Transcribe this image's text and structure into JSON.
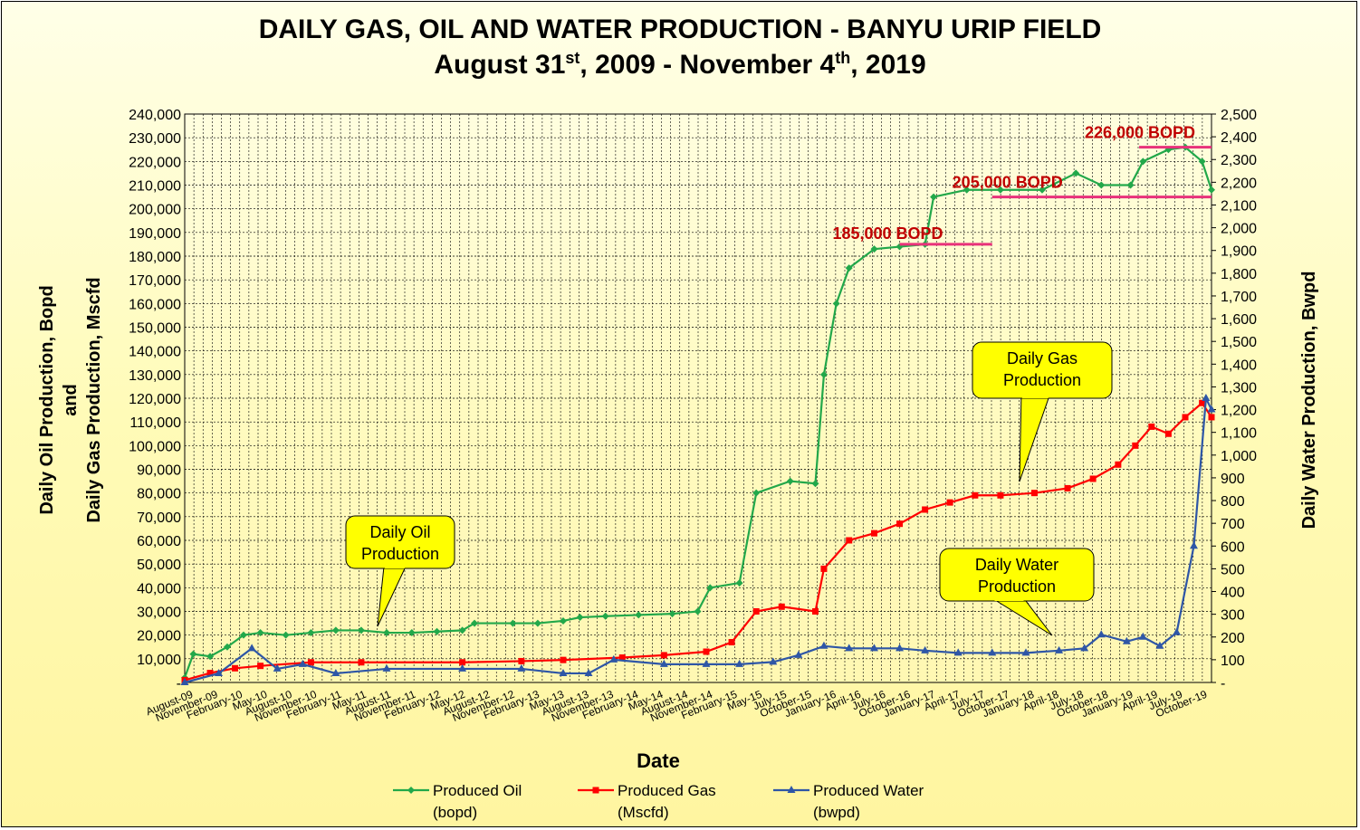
{
  "chart_data": {
    "type": "line",
    "title": "DAILY  GAS, OIL AND WATER PRODUCTION - BANYU URIP FIELD",
    "subtitle": {
      "prefix": "August 31",
      "sup1": "st",
      "mid": ", 2009 - November 4",
      "sup2": "th",
      "suffix": ", 2019"
    },
    "xlabel": "Date",
    "ylabel_left": [
      "Daily Oil Production, Bopd",
      "and",
      "Daily Gas Production, Mscfd"
    ],
    "ylabel_right": "Daily Water  Production, Bwpd",
    "x_range": [
      "2009-08-31",
      "2019-11-04"
    ],
    "y_left_range": [
      0,
      240000
    ],
    "y_right_range": [
      0,
      2500
    ],
    "grid": true,
    "legend_placement": "bottom",
    "x_ticks": [
      "August-09",
      "November-09",
      "February-10",
      "May-10",
      "August-10",
      "November-10",
      "February-11",
      "May-11",
      "August-11",
      "November-11",
      "February-12",
      "May-12",
      "August-12",
      "November-12",
      "February-13",
      "May-13",
      "August-13",
      "November-13",
      "February-14",
      "May-14",
      "August-14",
      "November-14",
      "February-15",
      "May-15",
      "July-15",
      "October-15",
      "January-16",
      "April-16",
      "July-16",
      "October-16",
      "January-17",
      "April-17",
      "July-17",
      "October-17",
      "January-18",
      "April-18",
      "July-18",
      "October-18",
      "January-19",
      "April-19",
      "July-19",
      "October-19"
    ],
    "y_left_ticks": [
      "-",
      "10,000",
      "20,000",
      "30,000",
      "40,000",
      "50,000",
      "60,000",
      "70,000",
      "80,000",
      "90,000",
      "100,000",
      "110,000",
      "120,000",
      "130,000",
      "140,000",
      "150,000",
      "160,000",
      "170,000",
      "180,000",
      "190,000",
      "200,000",
      "210,000",
      "220,000",
      "230,000",
      "240,000"
    ],
    "y_right_ticks": [
      "-",
      "100",
      "200",
      "300",
      "400",
      "500",
      "600",
      "700",
      "800",
      "900",
      "1,000",
      "1,100",
      "1,200",
      "1,300",
      "1,400",
      "1,500",
      "1,600",
      "1,700",
      "1,800",
      "1,900",
      "2,000",
      "2,100",
      "2,200",
      "2,300",
      "2,400",
      "2,500"
    ],
    "series": [
      {
        "name": "Produced Oil",
        "name2": "(bopd)",
        "color": "#22a84a",
        "marker": "diamond",
        "axis": "left",
        "points": [
          [
            "2009-08-31",
            2000
          ],
          [
            "2009-10-01",
            12000
          ],
          [
            "2009-12-01",
            11000
          ],
          [
            "2010-02-01",
            15000
          ],
          [
            "2010-04-01",
            20000
          ],
          [
            "2010-06-01",
            21000
          ],
          [
            "2010-09-01",
            20000
          ],
          [
            "2010-12-01",
            21000
          ],
          [
            "2011-03-01",
            22000
          ],
          [
            "2011-06-01",
            22000
          ],
          [
            "2011-09-01",
            21000
          ],
          [
            "2011-12-01",
            21000
          ],
          [
            "2012-03-01",
            21500
          ],
          [
            "2012-06-01",
            22000
          ],
          [
            "2012-07-15",
            25000
          ],
          [
            "2012-12-01",
            25000
          ],
          [
            "2013-03-01",
            25000
          ],
          [
            "2013-06-01",
            26000
          ],
          [
            "2013-08-01",
            27500
          ],
          [
            "2013-11-01",
            28000
          ],
          [
            "2014-03-01",
            28500
          ],
          [
            "2014-07-01",
            29000
          ],
          [
            "2014-10-01",
            30000
          ],
          [
            "2014-11-15",
            40000
          ],
          [
            "2015-03-01",
            42000
          ],
          [
            "2015-05-01",
            80000
          ],
          [
            "2015-09-01",
            85000
          ],
          [
            "2015-12-01",
            84000
          ],
          [
            "2016-01-01",
            130000
          ],
          [
            "2016-02-15",
            160000
          ],
          [
            "2016-04-01",
            175000
          ],
          [
            "2016-07-01",
            183000
          ],
          [
            "2016-10-01",
            184000
          ],
          [
            "2017-01-01",
            185000
          ],
          [
            "2017-02-01",
            205000
          ],
          [
            "2017-06-01",
            208000
          ],
          [
            "2017-10-01",
            208000
          ],
          [
            "2018-03-01",
            208000
          ],
          [
            "2018-07-01",
            215000
          ],
          [
            "2018-10-01",
            210000
          ],
          [
            "2019-01-15",
            210000
          ],
          [
            "2019-03-01",
            220000
          ],
          [
            "2019-06-01",
            225000
          ],
          [
            "2019-08-01",
            226000
          ],
          [
            "2019-10-01",
            220000
          ],
          [
            "2019-11-04",
            208000
          ]
        ]
      },
      {
        "name": "Produced Gas",
        "name2": "(Mscfd)",
        "color": "#ff0000",
        "marker": "square",
        "axis": "left",
        "points": [
          [
            "2009-08-31",
            1000
          ],
          [
            "2009-12-01",
            4000
          ],
          [
            "2010-03-01",
            6000
          ],
          [
            "2010-06-01",
            7000
          ],
          [
            "2010-12-01",
            8500
          ],
          [
            "2011-06-01",
            8500
          ],
          [
            "2012-06-01",
            8500
          ],
          [
            "2013-01-01",
            9000
          ],
          [
            "2013-06-01",
            9500
          ],
          [
            "2014-01-01",
            10500
          ],
          [
            "2014-06-01",
            11500
          ],
          [
            "2014-11-01",
            13000
          ],
          [
            "2015-02-01",
            17000
          ],
          [
            "2015-05-01",
            30000
          ],
          [
            "2015-08-01",
            32000
          ],
          [
            "2015-12-01",
            30000
          ],
          [
            "2016-01-01",
            48000
          ],
          [
            "2016-04-01",
            60000
          ],
          [
            "2016-07-01",
            63000
          ],
          [
            "2016-10-01",
            67000
          ],
          [
            "2017-01-01",
            73000
          ],
          [
            "2017-04-01",
            76000
          ],
          [
            "2017-07-01",
            79000
          ],
          [
            "2017-10-01",
            79000
          ],
          [
            "2018-02-01",
            80000
          ],
          [
            "2018-06-01",
            82000
          ],
          [
            "2018-09-01",
            86000
          ],
          [
            "2018-12-01",
            92000
          ],
          [
            "2019-02-01",
            100000
          ],
          [
            "2019-04-01",
            108000
          ],
          [
            "2019-06-01",
            105000
          ],
          [
            "2019-08-01",
            112000
          ],
          [
            "2019-10-01",
            118000
          ],
          [
            "2019-11-04",
            112000
          ]
        ]
      },
      {
        "name": "Produced Water",
        "name2": "(bwpd)",
        "color": "#2e56a6",
        "marker": "triangle",
        "axis": "right",
        "points": [
          [
            "2009-08-31",
            0
          ],
          [
            "2010-01-01",
            40
          ],
          [
            "2010-05-01",
            150
          ],
          [
            "2010-08-01",
            60
          ],
          [
            "2010-11-01",
            80
          ],
          [
            "2011-03-01",
            40
          ],
          [
            "2011-09-01",
            60
          ],
          [
            "2012-06-01",
            60
          ],
          [
            "2013-01-01",
            60
          ],
          [
            "2013-06-01",
            40
          ],
          [
            "2013-09-01",
            40
          ],
          [
            "2013-12-01",
            100
          ],
          [
            "2014-06-01",
            80
          ],
          [
            "2014-11-01",
            80
          ],
          [
            "2015-03-01",
            80
          ],
          [
            "2015-07-01",
            90
          ],
          [
            "2015-10-01",
            120
          ],
          [
            "2016-01-01",
            160
          ],
          [
            "2016-04-01",
            150
          ],
          [
            "2016-07-01",
            150
          ],
          [
            "2016-10-01",
            150
          ],
          [
            "2017-01-01",
            140
          ],
          [
            "2017-05-01",
            130
          ],
          [
            "2017-09-01",
            130
          ],
          [
            "2018-01-01",
            130
          ],
          [
            "2018-05-01",
            140
          ],
          [
            "2018-08-01",
            150
          ],
          [
            "2018-10-01",
            210
          ],
          [
            "2019-01-01",
            180
          ],
          [
            "2019-03-01",
            200
          ],
          [
            "2019-05-01",
            160
          ],
          [
            "2019-07-01",
            220
          ],
          [
            "2019-09-01",
            600
          ],
          [
            "2019-10-15",
            1250
          ],
          [
            "2019-11-04",
            1200
          ]
        ]
      }
    ],
    "annotations": {
      "callouts": [
        {
          "id": "oil",
          "text": [
            "Daily Oil",
            "Production"
          ]
        },
        {
          "id": "gas",
          "text": [
            "Daily Gas",
            "Production"
          ]
        },
        {
          "id": "water",
          "text": [
            "Daily Water",
            "Production"
          ]
        }
      ],
      "capacity_lines": [
        {
          "label": "185,000 BOPD",
          "value": 185000,
          "from": "2016-10-01",
          "to": "2017-09-01"
        },
        {
          "label": "205,000 BOPD",
          "value": 205000,
          "from": "2017-09-01",
          "to": "2019-11-04"
        },
        {
          "label": "226,000 BOPD",
          "value": 226000,
          "from": "2019-02-15",
          "to": "2019-11-04"
        }
      ],
      "line_color": "#e8317a",
      "label_color": "#c00000",
      "callout_fill": "#ffff00"
    }
  }
}
